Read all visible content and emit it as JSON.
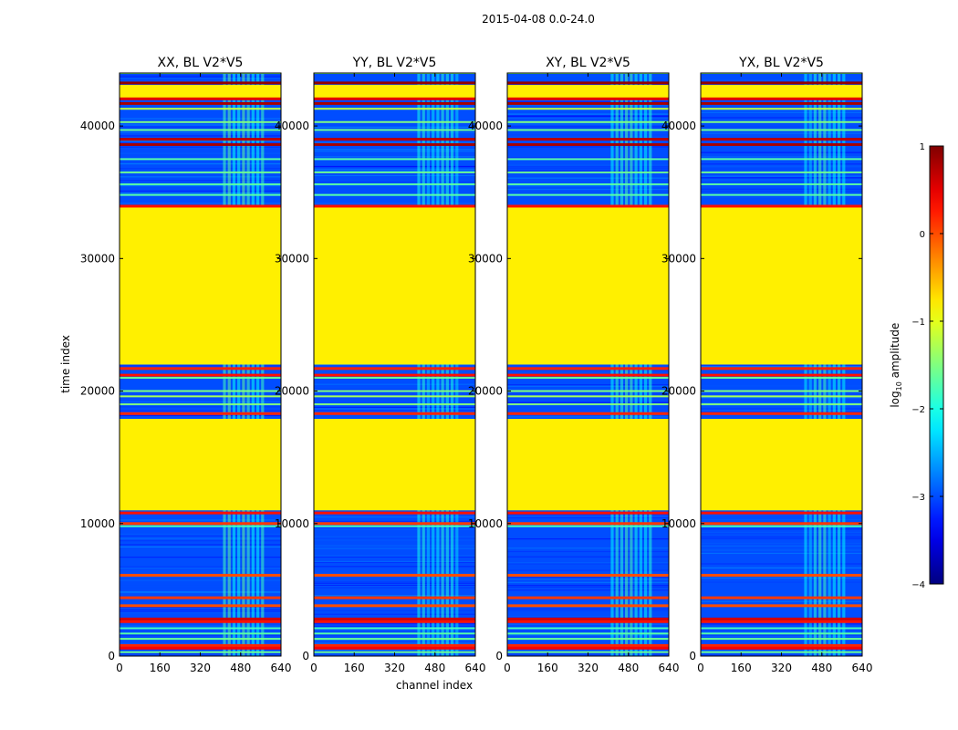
{
  "figure_title": "2015-04-08 0.0-24.0",
  "colorbar": {
    "label_prefix": "log",
    "label_sub": "10",
    "label_suffix": " amplitude",
    "ticks": [
      1,
      0,
      -1,
      -2,
      -3,
      -4
    ],
    "tick_labels": [
      "1",
      "0",
      "−1",
      "−2",
      "−3",
      "−4"
    ],
    "range": [
      -4,
      1
    ],
    "colormap": "jet"
  },
  "chart_data": {
    "type": "heatmap",
    "title": "2015-04-08 0.0-24.0",
    "xlabel": "channel index",
    "ylabel": "time index",
    "xlim": [
      0,
      640
    ],
    "ylim": [
      0,
      44000
    ],
    "xticks": [
      0,
      160,
      320,
      480,
      640
    ],
    "yticks": [
      0,
      10000,
      20000,
      30000,
      40000
    ],
    "panels": [
      {
        "title": "XX, BL V2*V5"
      },
      {
        "title": "YY, BL V2*V5"
      },
      {
        "title": "XY, BL V2*V5"
      },
      {
        "title": "YX, BL V2*V5"
      }
    ],
    "value_scale": "log10 amplitude",
    "value_range": [
      -4,
      1
    ],
    "background_level": -3.0,
    "flagged_level": -0.8,
    "flagged_time_blocks": [
      [
        11000,
        17900
      ],
      [
        22000,
        33900
      ],
      [
        42000,
        43100
      ]
    ],
    "active_channel_range": [
      410,
      580
    ],
    "active_channel_level": -1.9,
    "high_amplitude_rows": [
      {
        "t": 43250,
        "level": 0.9
      },
      {
        "t": 42050,
        "level": 0.5
      },
      {
        "t": 41700,
        "level": 0.8
      },
      {
        "t": 39000,
        "level": 0.7
      },
      {
        "t": 38600,
        "level": 0.8
      },
      {
        "t": 33950,
        "level": 0.3
      },
      {
        "t": 21700,
        "level": 0.2
      },
      {
        "t": 21200,
        "level": 0.3
      },
      {
        "t": 18300,
        "level": 0.2
      },
      {
        "t": 10800,
        "level": 0.3
      },
      {
        "t": 10000,
        "level": 0.1
      },
      {
        "t": 6100,
        "level": 0.0
      },
      {
        "t": 4400,
        "level": 0.1
      },
      {
        "t": 3800,
        "level": 0.0
      },
      {
        "t": 2800,
        "level": 0.6
      },
      {
        "t": 2600,
        "level": 0.3
      },
      {
        "t": 800,
        "level": 0.2
      },
      {
        "t": 600,
        "level": 0.4
      }
    ],
    "bright_rows": [
      {
        "t": 44000,
        "level": -1.5
      },
      {
        "t": 41300,
        "level": -1.2
      },
      {
        "t": 40300,
        "level": -1.5
      },
      {
        "t": 39700,
        "level": -1.6
      },
      {
        "t": 37500,
        "level": -1.7
      },
      {
        "t": 36500,
        "level": -1.6
      },
      {
        "t": 35600,
        "level": -1.7
      },
      {
        "t": 34800,
        "level": -1.7
      },
      {
        "t": 21000,
        "level": -1.6
      },
      {
        "t": 20000,
        "level": -1.5
      },
      {
        "t": 19600,
        "level": -1.3
      },
      {
        "t": 19000,
        "level": -1.5
      },
      {
        "t": 9800,
        "level": -1.8
      },
      {
        "t": 2100,
        "level": -1.8
      },
      {
        "t": 1700,
        "level": -1.7
      },
      {
        "t": 1300,
        "level": -1.6
      },
      {
        "t": 300,
        "level": -1.6
      }
    ]
  }
}
